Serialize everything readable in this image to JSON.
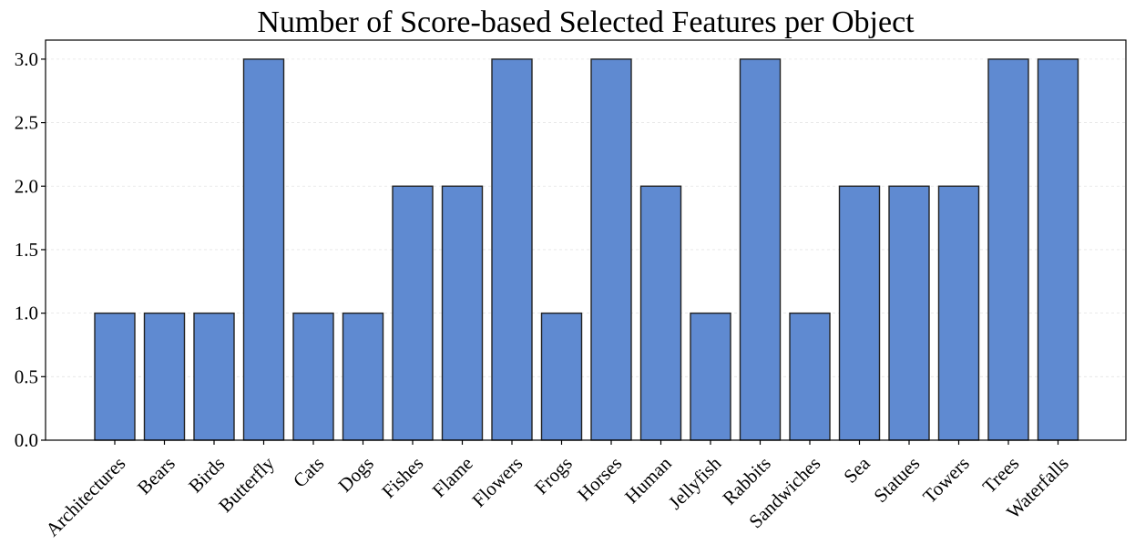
{
  "chart_data": {
    "type": "bar",
    "title": "Number of Score-based Selected Features per Object",
    "xlabel": "",
    "ylabel": "",
    "ylim": [
      0,
      3.15
    ],
    "yticks": [
      "0.0",
      "0.5",
      "1.0",
      "1.5",
      "2.0",
      "2.5",
      "3.0"
    ],
    "ytick_values": [
      0,
      0.5,
      1.0,
      1.5,
      2.0,
      2.5,
      3.0
    ],
    "grid": "y dashed",
    "bar_color": "#5f8ad1",
    "bar_edge_color": "#222222",
    "categories": [
      "Architectures",
      "Bears",
      "Birds",
      "Butterfly",
      "Cats",
      "Dogs",
      "Fishes",
      "Flame",
      "Flowers",
      "Frogs",
      "Horses",
      "Human",
      "Jellyfish",
      "Rabbits",
      "Sandwiches",
      "Sea",
      "Statues",
      "Towers",
      "Trees",
      "Waterfalls"
    ],
    "values": [
      1,
      1,
      1,
      3,
      1,
      1,
      2,
      2,
      3,
      1,
      3,
      2,
      1,
      3,
      1,
      2,
      2,
      2,
      3,
      3
    ]
  }
}
